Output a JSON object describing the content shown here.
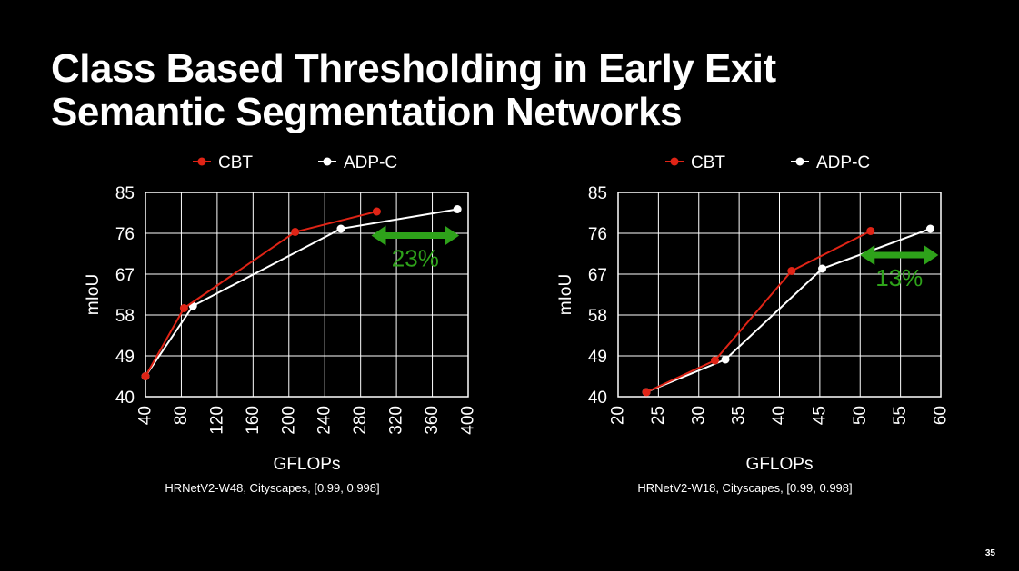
{
  "slide": {
    "title_line1": "Class Based Thresholding in Early Exit",
    "title_line2": "Semantic Segmentation Networks",
    "page_number": "35"
  },
  "colors": {
    "background": "#000000",
    "cbt": "#e02416",
    "adp": "#ffffff",
    "arrow": "#2ea21a",
    "grid": "#ffffff"
  },
  "chart_data": [
    {
      "type": "line",
      "caption": "HRNetV2-W48, Cityscapes, [0.99, 0.998]",
      "xlabel": "GFLOPs",
      "ylabel": "mIoU",
      "xlim": [
        40,
        400
      ],
      "ylim": [
        40,
        85
      ],
      "xticks": [
        40,
        80,
        120,
        160,
        200,
        240,
        280,
        320,
        360,
        400
      ],
      "yticks": [
        40,
        49,
        58,
        67,
        76,
        85
      ],
      "legend_position": "top",
      "grid": true,
      "series": [
        {
          "name": "CBT",
          "color": "#e02416",
          "x": [
            40,
            83,
            207,
            298
          ],
          "y": [
            44.5,
            59.5,
            76.3,
            80.8
          ]
        },
        {
          "name": "ADP-C",
          "color": "#ffffff",
          "x": [
            40,
            93,
            258,
            388
          ],
          "y": [
            44.5,
            60,
            77,
            81.3
          ]
        }
      ],
      "annotation": {
        "text": "23%",
        "x_from": 292,
        "x_to": 390,
        "y": 75.5
      }
    },
    {
      "type": "line",
      "caption": "HRNetV2-W18, Cityscapes, [0.99, 0.998]",
      "xlabel": "GFLOPs",
      "ylabel": "mIoU",
      "xlim": [
        20,
        60
      ],
      "ylim": [
        40,
        85
      ],
      "xticks": [
        20,
        25,
        30,
        35,
        40,
        45,
        50,
        55,
        60
      ],
      "yticks": [
        40,
        49,
        58,
        67,
        76,
        85
      ],
      "legend_position": "top",
      "grid": true,
      "series": [
        {
          "name": "CBT",
          "color": "#e02416",
          "x": [
            23.5,
            32,
            41.5,
            51.3
          ],
          "y": [
            41,
            48,
            67.7,
            76.5
          ]
        },
        {
          "name": "ADP-C",
          "color": "#ffffff",
          "x": [
            23.5,
            33.3,
            45.3,
            58.7
          ],
          "y": [
            41,
            48.2,
            68.2,
            77
          ]
        }
      ],
      "annotation": {
        "text": "13%",
        "x_from": 50,
        "x_to": 59.7,
        "y": 71.2
      }
    }
  ]
}
